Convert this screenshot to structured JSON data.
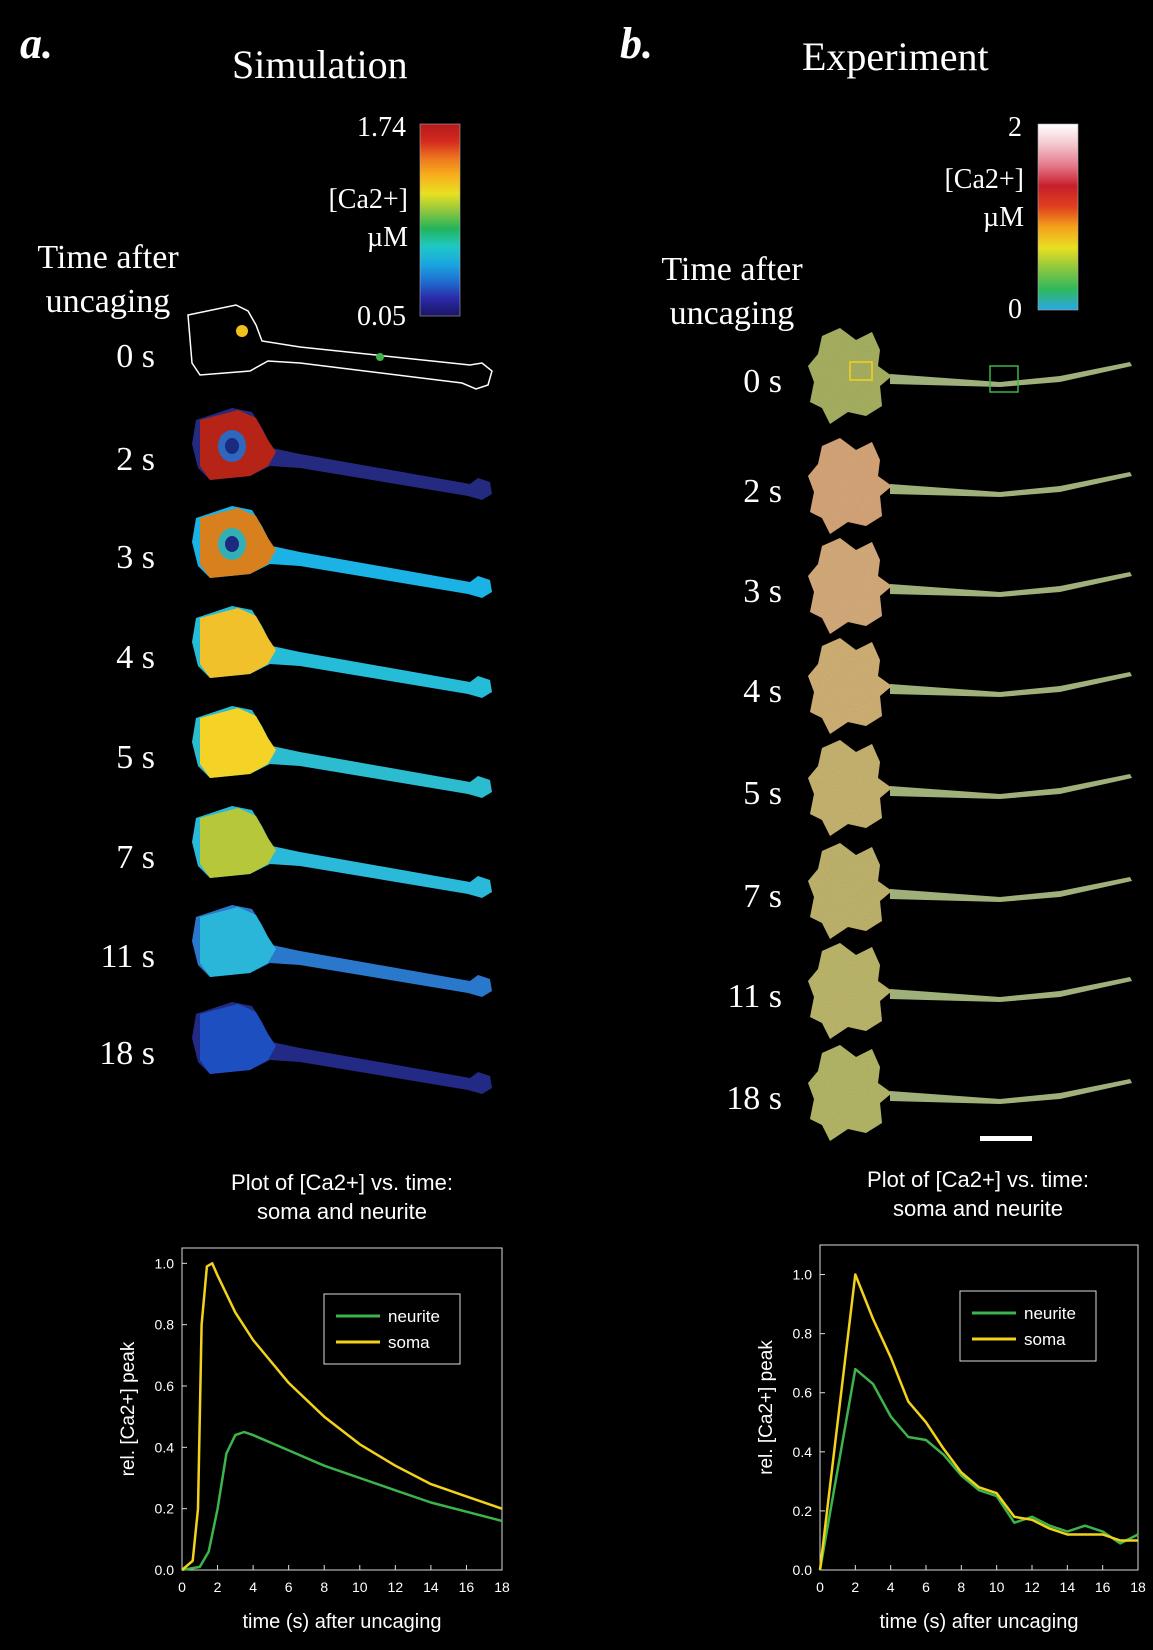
{
  "panels": {
    "a": {
      "label": "a.",
      "title": "Simulation",
      "time_header": [
        "Time after",
        "uncaging"
      ],
      "times": [
        "0 s",
        "2 s",
        "3 s",
        "4 s",
        "5 s",
        "7 s",
        "11 s",
        "18 s"
      ],
      "colorbar": {
        "max_label": "1.74",
        "min_label": "0.05",
        "unit_lines": [
          "[Ca2+]",
          "µM"
        ],
        "colors": [
          "#1b1464",
          "#2a2aa8",
          "#1f6fd1",
          "#1aa7e0",
          "#1fc9c4",
          "#23b45a",
          "#8cc63f",
          "#e8e022",
          "#f7b21b",
          "#ee7a1f",
          "#d42a20",
          "#b31b1b"
        ]
      },
      "frame_colors": [
        "outline",
        "#b62418",
        "#d8801e",
        "#f0c12a",
        "#f4d226",
        "#b7c73a",
        "#2ab6d8",
        "#1e4fc0"
      ],
      "neurite_colors": [
        "outline",
        "#242a80",
        "#1bb2e6",
        "#25bcd8",
        "#2bbccf",
        "#2ab9d8",
        "#2a78cc",
        "#232a86"
      ],
      "plot_title": [
        "Plot of [Ca2+] vs. time:",
        "soma and neurite"
      ]
    },
    "b": {
      "label": "b.",
      "title": "Experiment",
      "time_header": [
        "Time after",
        "uncaging"
      ],
      "times": [
        "0 s",
        "2 s",
        "3 s",
        "4 s",
        "5 s",
        "7 s",
        "11 s",
        "18 s"
      ],
      "colorbar": {
        "max_label": "2",
        "min_label": "0",
        "unit_lines": [
          "[Ca2+]",
          "µM"
        ],
        "colors": [
          "#2aa7e6",
          "#2fb85c",
          "#8cc63f",
          "#e8e022",
          "#f5a21b",
          "#e0401f",
          "#c81e2c",
          "#e57a8c",
          "#f3c6cd",
          "#ffffff"
        ]
      },
      "frame_colors": [
        "#a9b262",
        "#d8a77a",
        "#d6ad7c",
        "#d2b276",
        "#c8b571",
        "#c1b56e",
        "#bdb86c",
        "#b5b868"
      ],
      "plot_title": [
        "Plot of [Ca2+] vs. time:",
        "soma and neurite"
      ]
    }
  },
  "chart_data": [
    {
      "type": "line",
      "xlabel": "time (s) after uncaging",
      "ylabel": "rel. [Ca2+] peak",
      "xlim": [
        0,
        18
      ],
      "ylim": [
        0,
        1.05
      ],
      "xticks": [
        0,
        2,
        4,
        6,
        8,
        10,
        12,
        14,
        16,
        18
      ],
      "yticks": [
        0.0,
        0.2,
        0.4,
        0.6,
        0.8,
        1.0
      ],
      "legend_position": "top-right",
      "series": [
        {
          "name": "neurite",
          "color": "#3cb44b",
          "x": [
            0,
            1,
            1.5,
            2,
            2.5,
            3,
            3.5,
            4,
            6,
            8,
            10,
            12,
            14,
            16,
            18
          ],
          "y": [
            0,
            0.01,
            0.06,
            0.2,
            0.38,
            0.44,
            0.45,
            0.44,
            0.39,
            0.34,
            0.3,
            0.26,
            0.22,
            0.19,
            0.16
          ]
        },
        {
          "name": "soma",
          "color": "#f2d21a",
          "x": [
            0,
            0.6,
            0.9,
            1.1,
            1.4,
            1.7,
            2,
            3,
            4,
            6,
            8,
            10,
            12,
            14,
            16,
            18
          ],
          "y": [
            0,
            0.03,
            0.2,
            0.8,
            0.99,
            1.0,
            0.96,
            0.84,
            0.75,
            0.61,
            0.5,
            0.41,
            0.34,
            0.28,
            0.24,
            0.2
          ]
        }
      ]
    },
    {
      "type": "line",
      "xlabel": "time (s) after uncaging",
      "ylabel": "rel. [Ca2+] peak",
      "xlim": [
        0,
        18
      ],
      "ylim": [
        0,
        1.1
      ],
      "xticks": [
        0,
        2,
        4,
        6,
        8,
        10,
        12,
        14,
        16,
        18
      ],
      "yticks": [
        0.0,
        0.2,
        0.4,
        0.6,
        0.8,
        1.0
      ],
      "legend_position": "top-right",
      "series": [
        {
          "name": "neurite",
          "color": "#3cb44b",
          "x": [
            0,
            2,
            3,
            4,
            5,
            6,
            7,
            8,
            9,
            10,
            11,
            12,
            13,
            14,
            15,
            16,
            17,
            18
          ],
          "y": [
            0,
            0.68,
            0.63,
            0.52,
            0.45,
            0.44,
            0.39,
            0.32,
            0.27,
            0.25,
            0.16,
            0.18,
            0.15,
            0.13,
            0.15,
            0.13,
            0.09,
            0.12
          ]
        },
        {
          "name": "soma",
          "color": "#f2d21a",
          "x": [
            0,
            2,
            3,
            4,
            5,
            6,
            7,
            8,
            9,
            10,
            11,
            12,
            13,
            14,
            15,
            16,
            17,
            18
          ],
          "y": [
            0,
            1.0,
            0.85,
            0.72,
            0.57,
            0.5,
            0.41,
            0.33,
            0.28,
            0.26,
            0.18,
            0.17,
            0.14,
            0.12,
            0.12,
            0.12,
            0.1,
            0.1
          ]
        }
      ]
    }
  ]
}
